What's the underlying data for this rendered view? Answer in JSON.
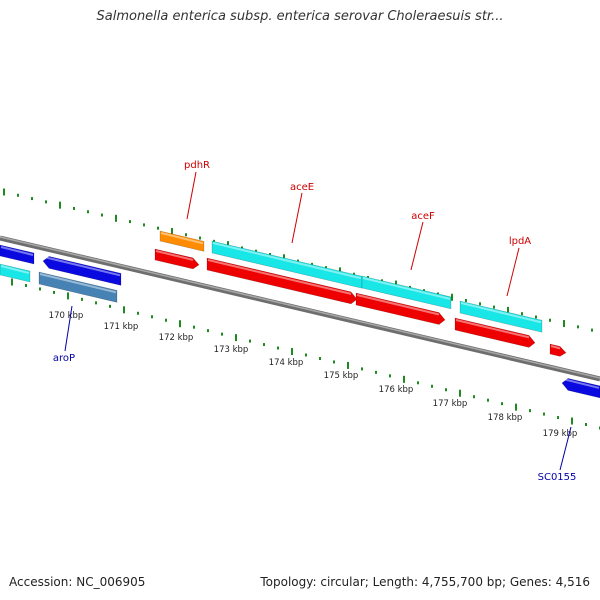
{
  "title": "Salmonella enterica subsp. enterica serovar Choleraesuis str...",
  "footer": {
    "accession": "Accession: NC_006905",
    "topology": "Topology: circular; Length: 4,755,700 bp; Genes: 4,516"
  },
  "colors": {
    "backbone": "#8a8a8a",
    "tick": "#1f8a1f",
    "gene_red": "#ee0000",
    "gene_cyan": "#19e6e6",
    "gene_orange": "#ff8c00",
    "gene_blue": "#0a0ae0",
    "gene_steelblue": "#4682b4",
    "label_red": "#cc0000",
    "label_blue": "#0000aa"
  },
  "scale_labels": [
    "170 kbp",
    "171 kbp",
    "172 kbp",
    "173 kbp",
    "174 kbp",
    "175 kbp",
    "176 kbp",
    "177 kbp",
    "178 kbp",
    "179 kbp"
  ],
  "gene_labels": [
    {
      "name": "pdhR",
      "color": "red"
    },
    {
      "name": "aceE",
      "color": "red"
    },
    {
      "name": "aceF",
      "color": "red"
    },
    {
      "name": "lpdA",
      "color": "red"
    },
    {
      "name": "aroP",
      "color": "blue"
    },
    {
      "name": "SC0155",
      "color": "blue"
    }
  ]
}
